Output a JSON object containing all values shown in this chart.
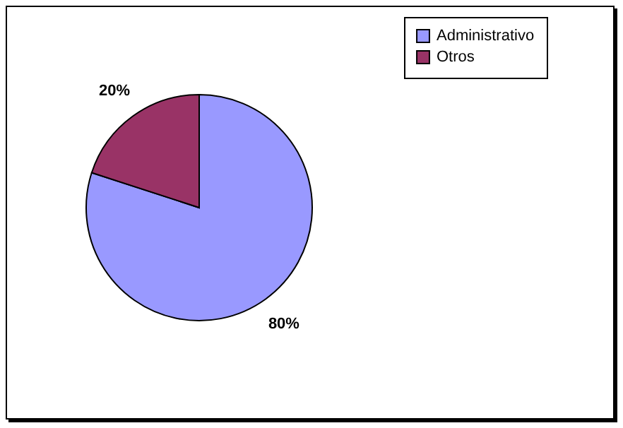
{
  "chart_data": {
    "type": "pie",
    "categories": [
      "Administrativo",
      "Otros"
    ],
    "values": [
      80,
      20
    ],
    "colors": [
      "#9999ff",
      "#993366"
    ],
    "value_labels": [
      "80%",
      "20%"
    ],
    "legend": "right"
  }
}
